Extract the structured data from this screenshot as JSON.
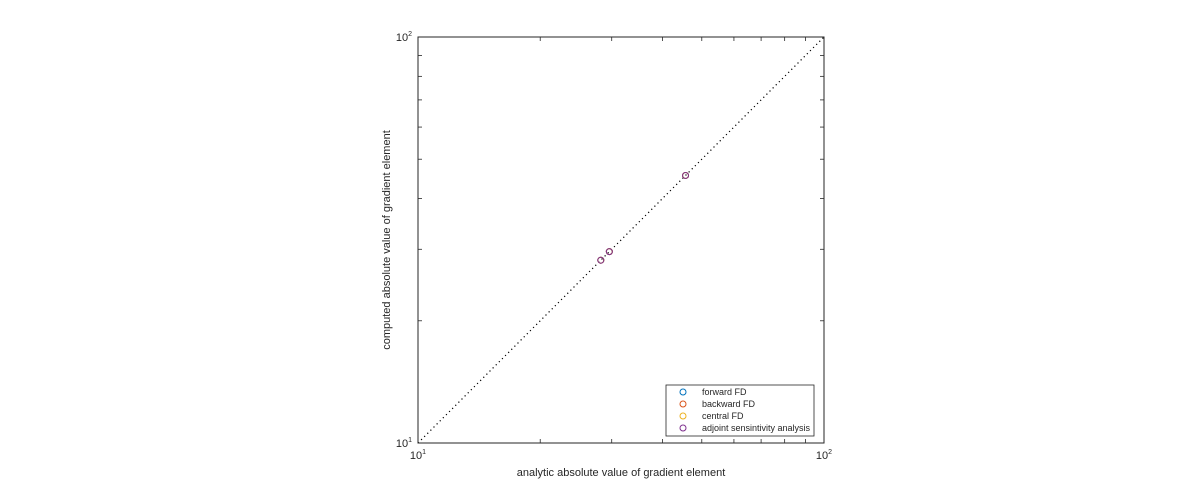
{
  "chart_data": {
    "type": "scatter",
    "xlabel": "analytic absolute value of gradient element",
    "ylabel": "computed absolute value of gradient element",
    "x_scale": "log",
    "y_scale": "log",
    "xlim": [
      10,
      100
    ],
    "ylim": [
      10,
      100
    ],
    "x_ticks": [
      {
        "base": "10",
        "exp": "1",
        "value": 10
      },
      {
        "base": "10",
        "exp": "2",
        "value": 100
      }
    ],
    "y_ticks": [
      {
        "base": "10",
        "exp": "1",
        "value": 10
      },
      {
        "base": "10",
        "exp": "2",
        "value": 100
      }
    ],
    "grid": false,
    "reference_line": {
      "style": "dotted",
      "from": [
        10,
        100
      ],
      "to": [
        100,
        100
      ]
    },
    "legend_position": "bottom-right",
    "series": [
      {
        "name": "forward FD",
        "color": "#0072BD",
        "x": [
          28.2,
          29.6,
          45.6
        ],
        "y": [
          28.2,
          29.6,
          45.6
        ]
      },
      {
        "name": "backward FD",
        "color": "#D95319",
        "x": [
          28.2,
          29.6,
          45.6
        ],
        "y": [
          28.2,
          29.6,
          45.6
        ]
      },
      {
        "name": "central FD",
        "color": "#EDB120",
        "x": [
          28.2,
          29.6,
          45.6
        ],
        "y": [
          28.2,
          29.6,
          45.6
        ]
      },
      {
        "name": "adjoint sensintivity analysis",
        "color": "#7E2F8E",
        "x": [
          28.2,
          29.6,
          45.6
        ],
        "y": [
          28.2,
          29.6,
          45.6
        ]
      }
    ]
  }
}
